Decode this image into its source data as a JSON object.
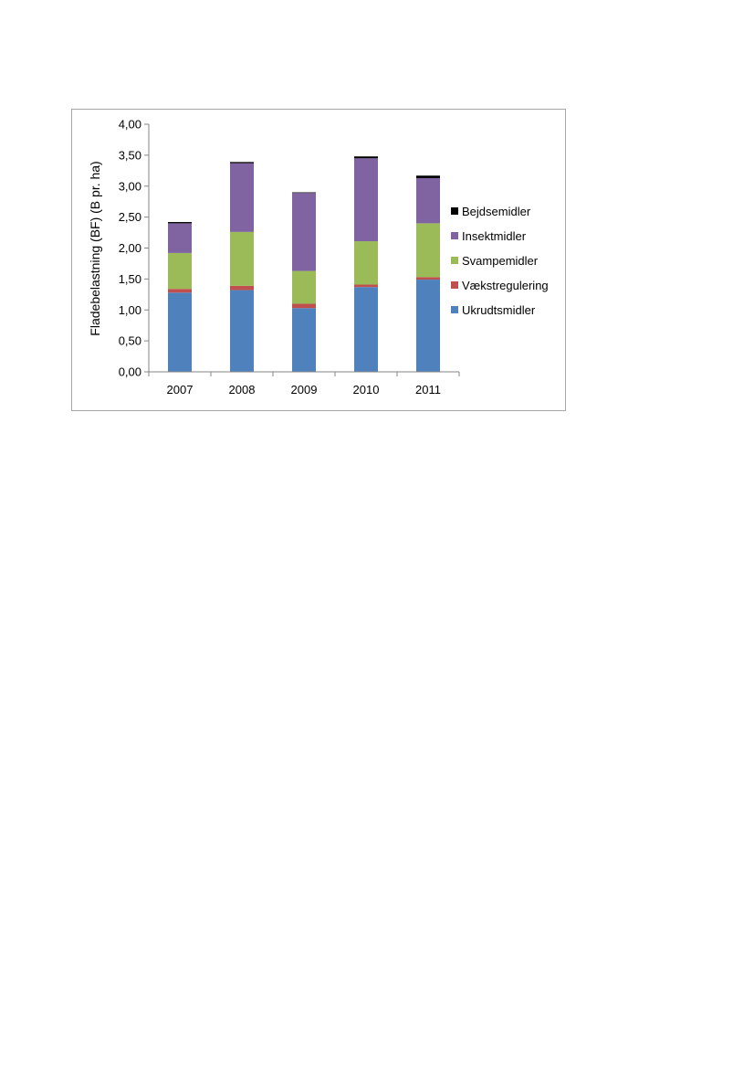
{
  "chart_data": {
    "type": "bar",
    "stacked": true,
    "categories": [
      "2007",
      "2008",
      "2009",
      "2010",
      "2011"
    ],
    "series": [
      {
        "name": "Ukrudtsmidler",
        "color": "#4f81bd",
        "values": [
          1.28,
          1.32,
          1.03,
          1.37,
          1.49
        ]
      },
      {
        "name": "Vækstregulering",
        "color": "#c0504d",
        "values": [
          0.06,
          0.07,
          0.07,
          0.04,
          0.04
        ]
      },
      {
        "name": "Svampemidler",
        "color": "#9bbb59",
        "values": [
          0.58,
          0.87,
          0.53,
          0.7,
          0.87
        ]
      },
      {
        "name": "Insektmidler",
        "color": "#8064a2",
        "values": [
          0.48,
          1.11,
          1.26,
          1.34,
          0.73
        ]
      },
      {
        "name": "Bejdsemidler",
        "color": "#000000",
        "values": [
          0.02,
          0.02,
          0.01,
          0.03,
          0.04
        ]
      }
    ],
    "xlabel": "",
    "ylabel": "Fladebelastning (BF) (B pr. ha)",
    "ylim": [
      0,
      4
    ],
    "yticks": [
      "0,00",
      "0,50",
      "1,00",
      "1,50",
      "2,00",
      "2,50",
      "3,00",
      "3,50",
      "4,00"
    ],
    "grid": false,
    "legend_position": "right",
    "legend_order": [
      "Bejdsemidler",
      "Insektmidler",
      "Svampemidler",
      "Vækstregulering",
      "Ukrudtsmidler"
    ]
  }
}
